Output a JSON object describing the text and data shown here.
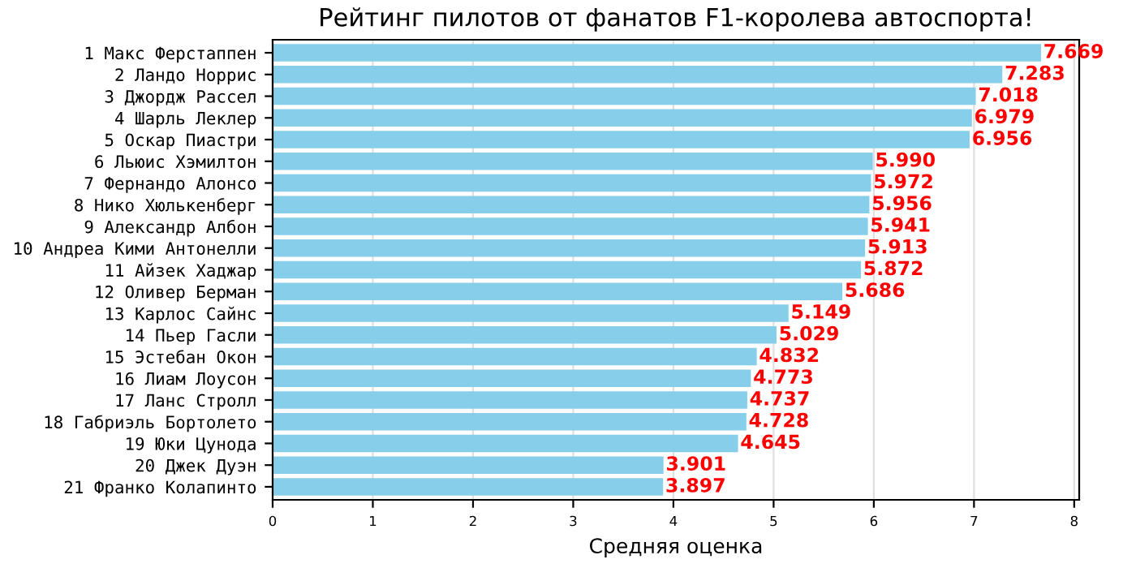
{
  "chart_data": {
    "type": "bar",
    "orientation": "horizontal",
    "title": "Рейтинг пилотов от фанатов F1-королева автоспорта!",
    "xlabel": "Средняя оценка",
    "categories": [
      "1 Макс Ферстаппен",
      "2 Ландо Норрис",
      "3 Джордж Рассел",
      "4 Шарль Леклер",
      "5 Оскар Пиастри",
      "6 Льюис Хэмилтон",
      "7 Фернандо Алонсо",
      "8 Нико Хюлькенберг",
      "9 Александр Албон",
      "10 Андреа Кими Антонелли",
      "11 Айзек Хаджар",
      "12 Оливер Берман",
      "13 Карлос Сайнс",
      "14 Пьер Гасли",
      "15 Эстебан Окон",
      "16 Лиам Лоусон",
      "17 Ланс Стролл",
      "18 Габриэль Бортолето",
      "19 Юки Цунода",
      "20 Джек Дуэн",
      "21 Франко Колапинто"
    ],
    "values": [
      7.669,
      7.283,
      7.018,
      6.979,
      6.956,
      5.99,
      5.972,
      5.956,
      5.941,
      5.913,
      5.872,
      5.686,
      5.149,
      5.029,
      4.832,
      4.773,
      4.737,
      4.728,
      4.645,
      3.901,
      3.897
    ],
    "value_labels": [
      "7.669",
      "7.283",
      "7.018",
      "6.979",
      "6.956",
      "5.990",
      "5.972",
      "5.956",
      "5.941",
      "5.913",
      "5.872",
      "5.686",
      "5.149",
      "5.029",
      "4.832",
      "4.773",
      "4.737",
      "4.728",
      "4.645",
      "3.901",
      "3.897"
    ],
    "color": "#87ceeb",
    "xlim": [
      0,
      8.05
    ],
    "xticks": [
      0,
      1,
      2,
      3,
      4,
      5,
      6,
      7,
      8
    ],
    "grid": "x"
  }
}
